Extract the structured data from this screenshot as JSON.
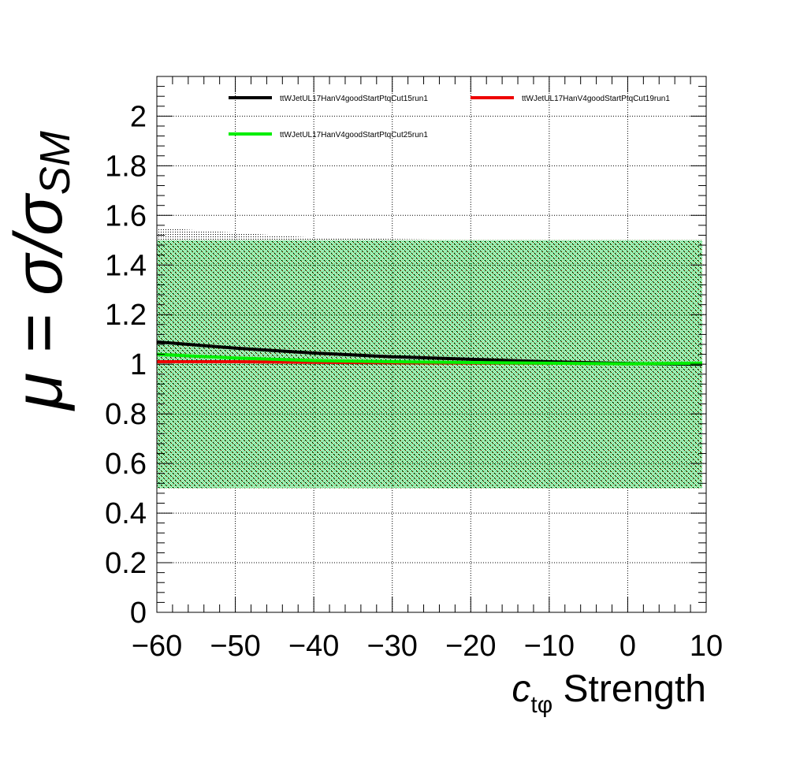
{
  "chart_data": {
    "type": "line",
    "xlabel_main": "c",
    "xlabel_sub": "tφ",
    "xlabel_rest": " Strength",
    "ylabel_main": "μ = σ/σ",
    "ylabel_sub": "SM",
    "xlim": [
      -60,
      10
    ],
    "ylim": [
      0,
      2.16
    ],
    "x_ticks": [
      -60,
      -50,
      -40,
      -30,
      -20,
      -10,
      0,
      10
    ],
    "x_tick_labels": [
      "−60",
      "−50",
      "−40",
      "−30",
      "−20",
      "−10",
      "0",
      "10"
    ],
    "y_ticks": [
      0,
      0.2,
      0.4,
      0.6,
      0.8,
      1,
      1.2,
      1.4,
      1.6,
      1.8,
      2
    ],
    "y_tick_labels": [
      "0",
      "0.2",
      "0.4",
      "0.6",
      "0.8",
      "1",
      "1.2",
      "1.4",
      "1.6",
      "1.8",
      "2"
    ],
    "grid": true,
    "legend_position": "top",
    "x": [
      -60,
      -50,
      -40,
      -30,
      -20,
      -10,
      0,
      9.5
    ],
    "series": [
      {
        "name": "ttWJetUL17HanV4goodStartPtqCut15run1",
        "color": "#000000",
        "values": [
          1.09,
          1.065,
          1.045,
          1.03,
          1.02,
          1.01,
          1.003,
          1.0
        ],
        "band_upper": [
          1.55,
          1.53,
          1.51,
          1.505,
          1.5,
          1.5,
          1.5,
          1.5
        ],
        "band_lower": [
          0.5,
          0.505,
          0.505,
          0.505,
          0.5,
          0.5,
          0.5,
          0.5
        ]
      },
      {
        "name": "ttWJetUL17HanV4goodStartPtqCut19run1",
        "color": "#ee0000",
        "values": [
          1.01,
          1.01,
          1.008,
          1.006,
          1.005,
          1.004,
          1.002,
          1.003
        ],
        "band_upper": [
          1.5,
          1.5,
          1.5,
          1.5,
          1.5,
          1.5,
          1.5,
          1.5
        ],
        "band_lower": [
          0.5,
          0.5,
          0.5,
          0.5,
          0.5,
          0.5,
          0.5,
          0.5
        ]
      },
      {
        "name": "ttWJetUL17HanV4goodStartPtqCut25run1",
        "color": "#00ee00",
        "values": [
          1.04,
          1.025,
          1.015,
          1.01,
          1.007,
          1.004,
          1.002,
          1.004
        ],
        "band_upper": [
          1.5,
          1.5,
          1.5,
          1.5,
          1.5,
          1.5,
          1.5,
          1.5
        ],
        "band_lower": [
          0.5,
          0.5,
          0.5,
          0.5,
          0.5,
          0.5,
          0.5,
          0.5
        ]
      }
    ]
  }
}
